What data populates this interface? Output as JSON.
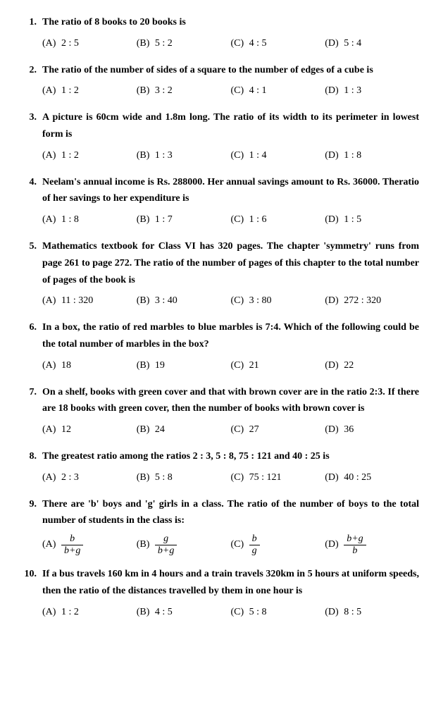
{
  "font_family": "Georgia, Times New Roman, serif",
  "text_color": "#000000",
  "background_color": "#ffffff",
  "font_size_pt": 11,
  "questions": [
    {
      "num": "1.",
      "text": "The ratio of 8 books to 20 books is",
      "opts": {
        "A": "2 : 5",
        "B": "5 : 2",
        "C": "4 : 5",
        "D": "5 : 4"
      }
    },
    {
      "num": "2.",
      "text": "The ratio of the number of sides of a square to the number of edges of a cube is",
      "opts": {
        "A": "1 : 2",
        "B": "3 : 2",
        "C": "4 : 1",
        "D": "1 : 3"
      }
    },
    {
      "num": "3.",
      "text": "A picture is 60cm wide and 1.8m long. The ratio of its width to its perimeter in lowest form is",
      "opts": {
        "A": "1 : 2",
        "B": "1 : 3",
        "C": "1 : 4",
        "D": "1 : 8"
      }
    },
    {
      "num": "4.",
      "text": "Neelam's annual income is Rs. 288000. Her annual savings amount to Rs. 36000. Theratio of her savings to her expenditure is",
      "opts": {
        "A": "1 : 8",
        "B": "1 : 7",
        "C": "1 : 6",
        "D": "1 : 5"
      }
    },
    {
      "num": "5.",
      "text": "Mathematics textbook for Class VI has 320 pages. The chapter 'symmetry' runs from page 261 to page 272. The ratio of the number of pages of this chapter to the total number of pages of the book is",
      "opts": {
        "A": "11 : 320",
        "B": "3 : 40",
        "C": "3 : 80",
        "D": "272 : 320"
      }
    },
    {
      "num": "6.",
      "text": "In a box, the ratio of red marbles to blue marbles is 7:4. Which of the following could be the total number of marbles in the box?",
      "opts": {
        "A": "18",
        "B": "19",
        "C": "21",
        "D": "22"
      }
    },
    {
      "num": "7.",
      "text": "On a shelf, books with green cover and that with brown cover are in the ratio 2:3. If there are 18 books with green cover, then the number of books with brown cover is",
      "opts": {
        "A": "12",
        "B": "24",
        "C": "27",
        "D": "36"
      }
    },
    {
      "num": "8.",
      "text": "The greatest ratio among the ratios 2 : 3, 5 : 8, 75 : 121 and 40 : 25 is",
      "opts": {
        "A": "2 : 3",
        "B": "5 : 8",
        "C": "75 : 121",
        "D": "40 : 25"
      }
    },
    {
      "num": "9.",
      "text": "There are 'b' boys and 'g' girls in a class. The ratio of the number of boys to the total number of students in the class is:",
      "frac_opts": {
        "A": {
          "num": "b",
          "den": "b+g"
        },
        "B": {
          "num": "g",
          "den": "b+g"
        },
        "C": {
          "num": "b",
          "den": "g"
        },
        "D": {
          "num": "b+g",
          "den": "b"
        }
      }
    },
    {
      "num": "10.",
      "text": "If a bus travels 160 km in 4 hours and a train travels 320km in 5 hours at uniform speeds, then the ratio of the distances travelled by them in one hour is",
      "opts": {
        "A": "1 : 2",
        "B": "4 : 5",
        "C": "5 : 8",
        "D": "8 : 5"
      }
    }
  ],
  "option_labels": {
    "A": "(A)",
    "B": "(B)",
    "C": "(C)",
    "D": "(D)"
  }
}
